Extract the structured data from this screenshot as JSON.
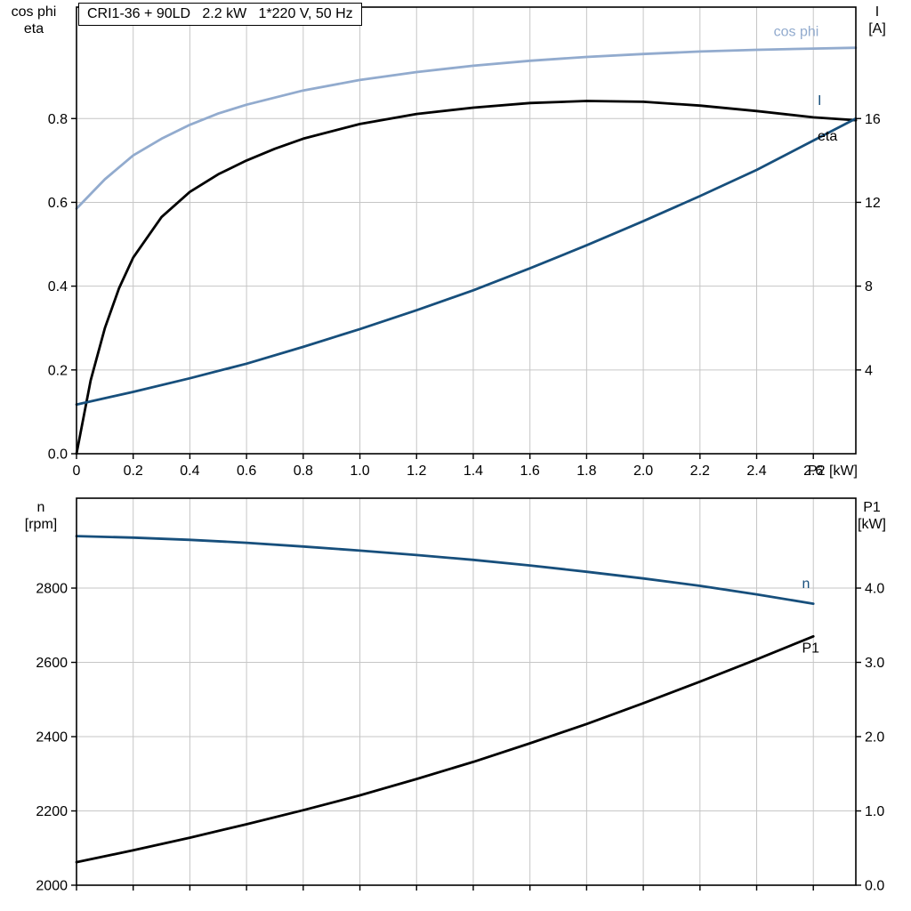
{
  "page": {
    "background": "#ffffff",
    "grid_color": "#c6c6c6",
    "accent_blue": "#174f7c",
    "accent_lightblue": "#92abce"
  },
  "chart_data": [
    {
      "type": "line",
      "title": "CRI1-36 + 90LD   2.2 kW   1*220 V, 50 Hz",
      "grid_color": "#c6c6c6",
      "x_axis": {
        "min": 0,
        "max": 2.75,
        "ticks": [
          0,
          0.2,
          0.4,
          0.6,
          0.8,
          1.0,
          1.2,
          1.4,
          1.6,
          1.8,
          2.0,
          2.2,
          2.4,
          2.6
        ],
        "tick_labels": [
          "0",
          "0.2",
          "0.4",
          "0.6",
          "0.8",
          "1.0",
          "1.2",
          "1.4",
          "1.6",
          "1.8",
          "2.0",
          "2.2",
          "2.4",
          "2.6"
        ],
        "end_label": "P2 [kW]"
      },
      "left_axis": {
        "label_lines": [
          "cos phi",
          "eta"
        ],
        "min": 0,
        "max": 1.066,
        "ticks": [
          0,
          0.2,
          0.4,
          0.6,
          0.8
        ],
        "tick_labels": [
          "0.0",
          "0.2",
          "0.4",
          "0.6",
          "0.8"
        ]
      },
      "right_axis": {
        "label_lines": [
          "I",
          "[A]"
        ],
        "min": 0,
        "max": 21.32,
        "ticks": [
          4,
          8,
          12,
          16
        ],
        "tick_labels": [
          "4",
          "8",
          "12",
          "16"
        ]
      },
      "series": [
        {
          "name": "cos phi",
          "slug": "cos-phi",
          "color": "#92abce",
          "axis": "left",
          "width": 2.8,
          "x": [
            0,
            0.1,
            0.2,
            0.3,
            0.4,
            0.5,
            0.6,
            0.8,
            1.0,
            1.2,
            1.4,
            1.6,
            1.8,
            2.0,
            2.2,
            2.4,
            2.6,
            2.75
          ],
          "y": [
            0.585,
            0.655,
            0.712,
            0.752,
            0.785,
            0.812,
            0.833,
            0.867,
            0.892,
            0.911,
            0.926,
            0.938,
            0.947,
            0.954,
            0.96,
            0.964,
            0.967,
            0.969
          ],
          "label": {
            "text": "cos phi",
            "x": 2.46,
            "y": 0.997
          }
        },
        {
          "name": "eta",
          "slug": "eta",
          "color": "#000000",
          "axis": "left",
          "width": 2.8,
          "x": [
            0,
            0.05,
            0.1,
            0.15,
            0.2,
            0.3,
            0.4,
            0.5,
            0.6,
            0.7,
            0.8,
            1.0,
            1.2,
            1.4,
            1.6,
            1.8,
            2.0,
            2.2,
            2.4,
            2.6,
            2.75
          ],
          "y": [
            0,
            0.175,
            0.3,
            0.395,
            0.468,
            0.565,
            0.625,
            0.667,
            0.7,
            0.728,
            0.752,
            0.787,
            0.811,
            0.826,
            0.837,
            0.842,
            0.84,
            0.831,
            0.818,
            0.803,
            0.796
          ],
          "label": {
            "text": "eta",
            "x": 2.615,
            "y": 0.748
          }
        },
        {
          "name": "I",
          "slug": "current",
          "color": "#174f7c",
          "axis": "right",
          "width": 2.8,
          "x": [
            0,
            0.2,
            0.4,
            0.6,
            0.8,
            1.0,
            1.2,
            1.4,
            1.6,
            1.8,
            2.0,
            2.2,
            2.4,
            2.6,
            2.75
          ],
          "y": [
            2.35,
            2.95,
            3.6,
            4.3,
            5.1,
            5.95,
            6.85,
            7.8,
            8.85,
            9.95,
            11.1,
            12.3,
            13.55,
            14.95,
            16.0
          ],
          "label": {
            "text": "I",
            "x": 2.615,
            "y": 16.65
          }
        }
      ]
    },
    {
      "type": "line",
      "title": "",
      "grid_color": "#c6c6c6",
      "x_axis": {
        "min": 0,
        "max": 2.75,
        "ticks": [
          0,
          0.2,
          0.4,
          0.6,
          0.8,
          1.0,
          1.2,
          1.4,
          1.6,
          1.8,
          2.0,
          2.2,
          2.4,
          2.6
        ],
        "tick_labels": null,
        "end_label": ""
      },
      "left_axis": {
        "label_lines": [
          "n",
          "[rpm]"
        ],
        "min": 2000,
        "max": 3042,
        "ticks": [
          2000,
          2200,
          2400,
          2600,
          2800
        ],
        "tick_labels": [
          "2000",
          "2200",
          "2400",
          "2600",
          "2800"
        ]
      },
      "right_axis": {
        "label_lines": [
          "P1",
          "[kW]"
        ],
        "min": 0,
        "max": 5.21,
        "ticks": [
          0,
          1,
          2,
          3,
          4
        ],
        "tick_labels": [
          "0.0",
          "1.0",
          "2.0",
          "3.0",
          "4.0"
        ]
      },
      "series": [
        {
          "name": "n",
          "slug": "speed",
          "color": "#174f7c",
          "axis": "left",
          "width": 2.8,
          "x": [
            0,
            0.2,
            0.4,
            0.6,
            0.8,
            1.0,
            1.2,
            1.4,
            1.6,
            1.8,
            2.0,
            2.2,
            2.4,
            2.6
          ],
          "y": [
            2940,
            2936,
            2930,
            2922,
            2912,
            2901,
            2889,
            2876,
            2861,
            2844,
            2826,
            2806,
            2783,
            2758
          ],
          "label": {
            "text": "n",
            "x": 2.56,
            "y": 2800
          }
        },
        {
          "name": "P1",
          "slug": "p1",
          "color": "#000000",
          "axis": "right",
          "width": 2.8,
          "x": [
            0,
            0.2,
            0.4,
            0.6,
            0.8,
            1.0,
            1.2,
            1.4,
            1.6,
            1.8,
            2.0,
            2.2,
            2.4,
            2.6
          ],
          "y": [
            0.31,
            0.47,
            0.64,
            0.82,
            1.01,
            1.21,
            1.43,
            1.66,
            1.91,
            2.17,
            2.45,
            2.74,
            3.04,
            3.35
          ],
          "label": {
            "text": "P1",
            "x": 2.56,
            "y": 3.13
          }
        }
      ]
    }
  ]
}
